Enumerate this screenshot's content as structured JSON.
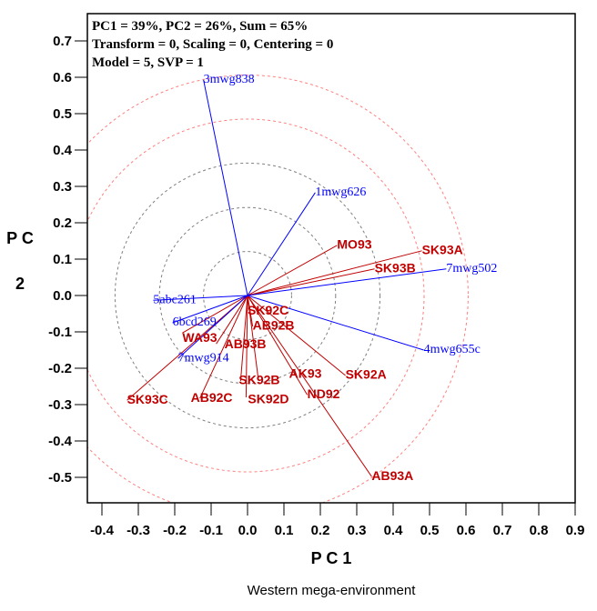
{
  "chart_data": {
    "type": "scatter",
    "subtitle": "Western mega-environment",
    "xlabel": "P C 1",
    "ylabel_lines": [
      "P C",
      "2"
    ],
    "info_lines": [
      "PC1 = 39%, PC2 = 26%, Sum = 65%",
      "Transform = 0, Scaling = 0, Centering = 0",
      "Model = 5, SVP = 1"
    ],
    "xlim": [
      -0.44,
      0.9
    ],
    "ylim": [
      -0.57,
      0.775
    ],
    "xticks": [
      "-0.4",
      "-0.3",
      "-0.2",
      "-0.1",
      "0.0",
      "0.1",
      "0.2",
      "0.3",
      "0.4",
      "0.5",
      "0.6",
      "0.7",
      "0.8",
      "0.9"
    ],
    "yticks": [
      "0.7",
      "0.6",
      "0.5",
      "0.4",
      "0.3",
      "0.2",
      "0.1",
      "0.0",
      "-0.1",
      "-0.2",
      "-0.3",
      "-0.4",
      "-0.5"
    ],
    "grid": false,
    "circle_radii": [
      0.121,
      0.242,
      0.364,
      0.485,
      0.606
    ],
    "colors": {
      "environment": "#0000ff",
      "genotype": "#c00000",
      "inner_circle": "#808080",
      "outer_circle": "#ff8080"
    },
    "environments": [
      {
        "label": "1mwg626",
        "x": 0.186,
        "y": 0.283
      },
      {
        "label": "3mwg838",
        "x": -0.121,
        "y": 0.593
      },
      {
        "label": "7mwg502",
        "x": 0.546,
        "y": 0.073
      },
      {
        "label": "4mwg655c",
        "x": 0.484,
        "y": -0.15
      },
      {
        "label": "5abc261",
        "x": -0.259,
        "y": -0.013
      },
      {
        "label": "6bcd269",
        "x": -0.206,
        "y": -0.075
      },
      {
        "label": "7mwg914",
        "x": -0.191,
        "y": -0.173
      }
    ],
    "genotypes": [
      {
        "label": "MO93",
        "x": 0.246,
        "y": 0.138
      },
      {
        "label": "SK93A",
        "x": 0.479,
        "y": 0.123
      },
      {
        "label": "SK93B",
        "x": 0.349,
        "y": 0.073
      },
      {
        "label": "SK92C",
        "x": 0.0,
        "y": -0.043
      },
      {
        "label": "AB92B",
        "x": 0.014,
        "y": -0.085
      },
      {
        "label": "WA93",
        "x": -0.179,
        "y": -0.103
      },
      {
        "label": "AB93B",
        "x": -0.086,
        "y": -0.133
      },
      {
        "label": "SK92A",
        "x": 0.269,
        "y": -0.22
      },
      {
        "label": "AK93",
        "x": 0.029,
        "y": -0.225
      },
      {
        "label": "SK92B",
        "x": -0.019,
        "y": -0.235
      },
      {
        "label": "SK92D",
        "x": -0.004,
        "y": -0.28
      },
      {
        "label": "ND92",
        "x": 0.164,
        "y": -0.273
      },
      {
        "label": "AB92C",
        "x": -0.131,
        "y": -0.283
      },
      {
        "label": "SK93C",
        "x": -0.331,
        "y": -0.288
      },
      {
        "label": "AB93A",
        "x": 0.341,
        "y": -0.498
      }
    ]
  }
}
